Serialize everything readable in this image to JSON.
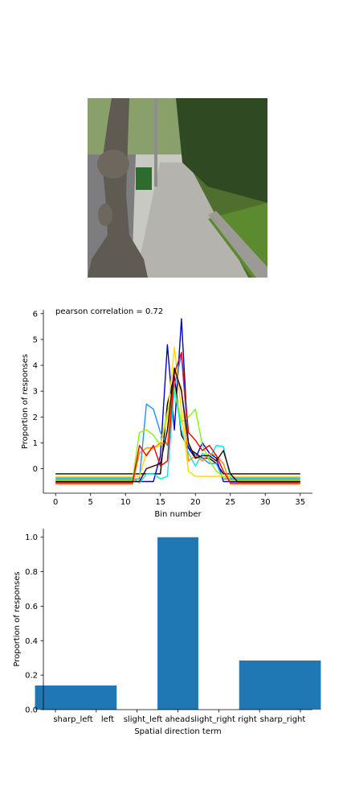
{
  "photo": {
    "scene": "street-sidewalk-with-tree"
  },
  "chart_data": [
    {
      "type": "line",
      "title": "pearson correlation = 0.72",
      "xlabel": "Bin number",
      "ylabel": "Proportion of responses",
      "xlim": [
        -1.75,
        36.75
      ],
      "ylim": [
        -0.95,
        6.15
      ],
      "xticks": [
        0,
        5,
        10,
        15,
        20,
        25,
        30,
        35
      ],
      "yticks": [
        0,
        1,
        2,
        3,
        4,
        5,
        6
      ],
      "x": [
        0,
        1,
        2,
        3,
        4,
        5,
        6,
        7,
        8,
        9,
        10,
        11,
        12,
        13,
        14,
        15,
        16,
        17,
        18,
        19,
        20,
        21,
        22,
        23,
        24,
        25,
        26,
        27,
        28,
        29,
        30,
        31,
        32,
        33,
        34,
        35
      ],
      "series": [
        {
          "color": "#000000",
          "values": [
            -0.2,
            -0.2,
            -0.2,
            -0.2,
            -0.2,
            -0.2,
            -0.2,
            -0.2,
            -0.2,
            -0.2,
            -0.2,
            -0.2,
            -0.2,
            -0.2,
            -0.2,
            -0.2,
            2.5,
            3.6,
            1.3,
            0.8,
            0.6,
            0.4,
            0.4,
            0.2,
            -0.2,
            -0.2,
            -0.2,
            -0.2,
            -0.2,
            -0.2,
            -0.2,
            -0.2,
            -0.2,
            -0.2,
            -0.2,
            -0.2
          ]
        },
        {
          "color": "#0000cc",
          "values": [
            -0.5,
            -0.5,
            -0.5,
            -0.5,
            -0.5,
            -0.5,
            -0.5,
            -0.5,
            -0.5,
            -0.5,
            -0.5,
            -0.5,
            -0.5,
            -0.5,
            -0.5,
            0.5,
            4.8,
            1.5,
            5.8,
            0.8,
            0.4,
            1.0,
            0.6,
            0.4,
            -0.5,
            -0.5,
            -0.5,
            -0.5,
            -0.5,
            -0.5,
            -0.5,
            -0.5,
            -0.5,
            -0.5,
            -0.5,
            -0.5
          ]
        },
        {
          "color": "#1e90ff",
          "values": [
            -0.4,
            -0.4,
            -0.4,
            -0.4,
            -0.4,
            -0.4,
            -0.4,
            -0.4,
            -0.4,
            -0.4,
            -0.4,
            -0.4,
            -0.4,
            2.5,
            2.3,
            1.4,
            0.9,
            3.2,
            4.4,
            0.9,
            0.5,
            0.4,
            0.2,
            0.2,
            -0.4,
            -0.4,
            -0.4,
            -0.4,
            -0.4,
            -0.4,
            -0.4,
            -0.4,
            -0.4,
            -0.4,
            -0.4,
            -0.4
          ]
        },
        {
          "color": "#00e5ee",
          "values": [
            -0.35,
            -0.35,
            -0.35,
            -0.35,
            -0.35,
            -0.35,
            -0.35,
            -0.35,
            -0.35,
            -0.35,
            -0.35,
            -0.35,
            -0.55,
            -0.2,
            -0.2,
            -0.4,
            -0.3,
            3.1,
            1.5,
            0.6,
            0.1,
            0.6,
            0.4,
            0.9,
            0.85,
            -0.35,
            -0.35,
            -0.35,
            -0.35,
            -0.35,
            -0.35,
            -0.35,
            -0.35,
            -0.35,
            -0.35,
            -0.35
          ]
        },
        {
          "color": "#7fff00",
          "values": [
            -0.45,
            -0.45,
            -0.45,
            -0.45,
            -0.45,
            -0.45,
            -0.45,
            -0.45,
            -0.45,
            -0.45,
            -0.45,
            -0.45,
            1.4,
            1.5,
            1.3,
            0.9,
            2.2,
            3.1,
            1.8,
            2.0,
            2.3,
            0.9,
            0.3,
            -0.1,
            -0.3,
            -0.45,
            -0.45,
            -0.45,
            -0.45,
            -0.45,
            -0.45,
            -0.45,
            -0.45,
            -0.45,
            -0.45,
            -0.45
          ]
        },
        {
          "color": "#ffd700",
          "values": [
            -0.3,
            -0.3,
            -0.3,
            -0.3,
            -0.3,
            -0.3,
            -0.3,
            -0.3,
            -0.3,
            -0.3,
            -0.3,
            -0.3,
            -0.3,
            0.6,
            0.8,
            0.9,
            2.0,
            4.7,
            2.2,
            -0.1,
            -0.3,
            -0.3,
            -0.3,
            -0.3,
            -0.3,
            -0.3,
            -0.3,
            -0.3,
            -0.3,
            -0.3,
            -0.3,
            -0.3,
            -0.3,
            -0.3,
            -0.3,
            -0.3
          ]
        },
        {
          "color": "#ff8c00",
          "values": [
            -0.6,
            -0.6,
            -0.6,
            -0.6,
            -0.6,
            -0.6,
            -0.6,
            -0.6,
            -0.6,
            -0.6,
            -0.6,
            -0.6,
            0.6,
            0.8,
            0.8,
            1.0,
            1.0,
            3.8,
            3.1,
            0.3,
            0.5,
            0.3,
            0.6,
            0.5,
            0.2,
            -0.6,
            -0.6,
            -0.6,
            -0.6,
            -0.6,
            -0.6,
            -0.6,
            -0.6,
            -0.6,
            -0.6,
            -0.6
          ]
        },
        {
          "color": "#ee0000",
          "values": [
            -0.55,
            -0.55,
            -0.55,
            -0.55,
            -0.55,
            -0.55,
            -0.55,
            -0.55,
            -0.55,
            -0.55,
            -0.55,
            -0.55,
            0.9,
            0.5,
            0.9,
            0.1,
            0.3,
            3.7,
            4.5,
            1.4,
            1.1,
            0.7,
            0.9,
            0.5,
            -0.1,
            -0.55,
            -0.55,
            -0.55,
            -0.55,
            -0.55,
            -0.55,
            -0.55,
            -0.55,
            -0.55,
            -0.55,
            -0.55
          ]
        },
        {
          "color": "#3a0000",
          "values": [
            -0.5,
            -0.5,
            -0.5,
            -0.5,
            -0.5,
            -0.5,
            -0.5,
            -0.5,
            -0.5,
            -0.5,
            -0.5,
            -0.5,
            -0.5,
            0.0,
            0.1,
            0.2,
            1.5,
            3.9,
            3.0,
            1.0,
            0.4,
            0.5,
            0.5,
            0.3,
            0.7,
            -0.2,
            -0.5,
            -0.5,
            -0.5,
            -0.5,
            -0.5,
            -0.5,
            -0.5,
            -0.5,
            -0.5,
            -0.5
          ]
        }
      ]
    },
    {
      "type": "bar",
      "xlabel": "Spatial direction term",
      "ylabel": "Proportion of responses",
      "categories": [
        "sharp_left",
        "left",
        "slight_left",
        "ahead",
        "slight_right",
        "right",
        "sharp_right"
      ],
      "values": [
        0.14,
        0.14,
        0.0,
        1.0,
        0.0,
        0.285,
        0.285
      ],
      "ylim": [
        0,
        1.05
      ],
      "yticks": [
        "0.0",
        "0.2",
        "0.4",
        "0.6",
        "0.8",
        "1.0"
      ],
      "bar_color": "#1f77b4"
    }
  ]
}
